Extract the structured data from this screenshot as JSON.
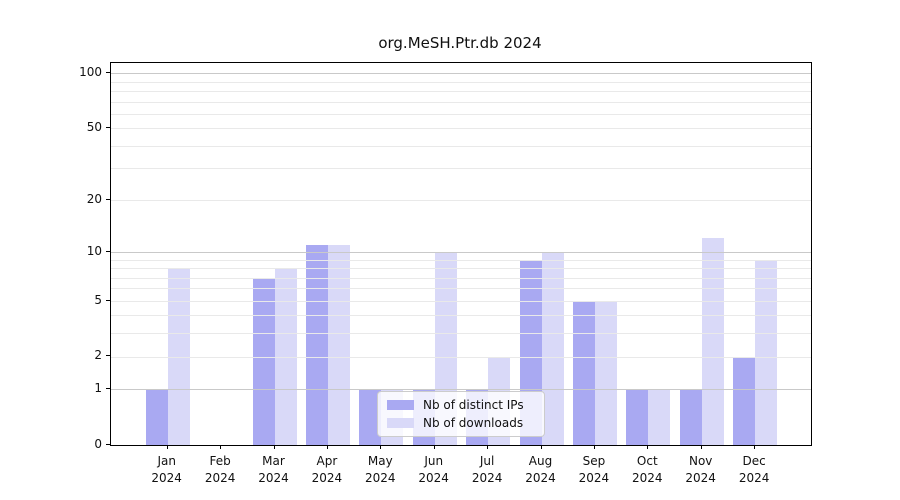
{
  "chart_data": {
    "type": "bar",
    "title": "org.MeSH.Ptr.db 2024",
    "categories": [
      "Jan",
      "Feb",
      "Mar",
      "Apr",
      "May",
      "Jun",
      "Jul",
      "Aug",
      "Sep",
      "Oct",
      "Nov",
      "Dec"
    ],
    "x_tick_second_line": "2024",
    "series": [
      {
        "name": "Nb of distinct IPs",
        "color": "#a9a9f2",
        "values": [
          1,
          0,
          7,
          11,
          1,
          1,
          1,
          9,
          5,
          1,
          1,
          2
        ]
      },
      {
        "name": "Nb of downloads",
        "color": "#d9d9f8",
        "values": [
          8,
          0,
          8,
          11,
          1,
          10,
          2,
          10,
          5,
          1,
          12,
          9
        ]
      }
    ],
    "yscale": "log1p",
    "ylim": [
      0,
      113
    ],
    "y_ticks": [
      0,
      1,
      2,
      5,
      10,
      20,
      50,
      100
    ],
    "y_major_gridlines": [
      1,
      10,
      100
    ],
    "y_minor_gridlines": [
      2,
      3,
      4,
      5,
      6,
      7,
      8,
      9,
      20,
      30,
      40,
      50,
      60,
      70,
      80,
      90
    ],
    "grid": "horizontal",
    "legend_position": "inside-bottom-center",
    "xlabel": "",
    "ylabel": ""
  },
  "colors": {
    "axis": "#000000",
    "major_gridline": "#c9c9c9",
    "minor_gridline": "#e9e9e9",
    "legend_border": "#cccccc",
    "text": "#111111"
  }
}
